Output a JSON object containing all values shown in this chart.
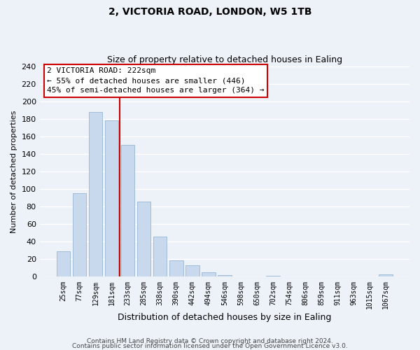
{
  "title_line1": "2, VICTORIA ROAD, LONDON, W5 1TB",
  "title_line2": "Size of property relative to detached houses in Ealing",
  "xlabel": "Distribution of detached houses by size in Ealing",
  "ylabel": "Number of detached properties",
  "bar_labels": [
    "25sqm",
    "77sqm",
    "129sqm",
    "181sqm",
    "233sqm",
    "285sqm",
    "338sqm",
    "390sqm",
    "442sqm",
    "494sqm",
    "546sqm",
    "598sqm",
    "650sqm",
    "702sqm",
    "754sqm",
    "806sqm",
    "859sqm",
    "911sqm",
    "963sqm",
    "1015sqm",
    "1067sqm"
  ],
  "bar_heights": [
    29,
    95,
    188,
    178,
    150,
    86,
    46,
    19,
    13,
    5,
    2,
    0,
    0,
    1,
    0,
    0,
    0,
    0,
    0,
    0,
    3
  ],
  "bar_color": "#c8d9ee",
  "bar_edge_color": "#a0bcd8",
  "vline_color": "#cc0000",
  "vline_x_idx": 3.5,
  "ylim": [
    0,
    240
  ],
  "yticks": [
    0,
    20,
    40,
    60,
    80,
    100,
    120,
    140,
    160,
    180,
    200,
    220,
    240
  ],
  "annotation_title": "2 VICTORIA ROAD: 222sqm",
  "annotation_line1": "← 55% of detached houses are smaller (446)",
  "annotation_line2": "45% of semi-detached houses are larger (364) →",
  "annotation_box_facecolor": "#ffffff",
  "annotation_box_edgecolor": "#cc0000",
  "footer_line1": "Contains HM Land Registry data © Crown copyright and database right 2024.",
  "footer_line2": "Contains public sector information licensed under the Open Government Licence v3.0.",
  "background_color": "#edf2f9",
  "grid_color": "#ffffff",
  "title1_fontsize": 10,
  "title2_fontsize": 9,
  "xlabel_fontsize": 9,
  "ylabel_fontsize": 8,
  "tick_fontsize": 7,
  "footer_fontsize": 6.5
}
